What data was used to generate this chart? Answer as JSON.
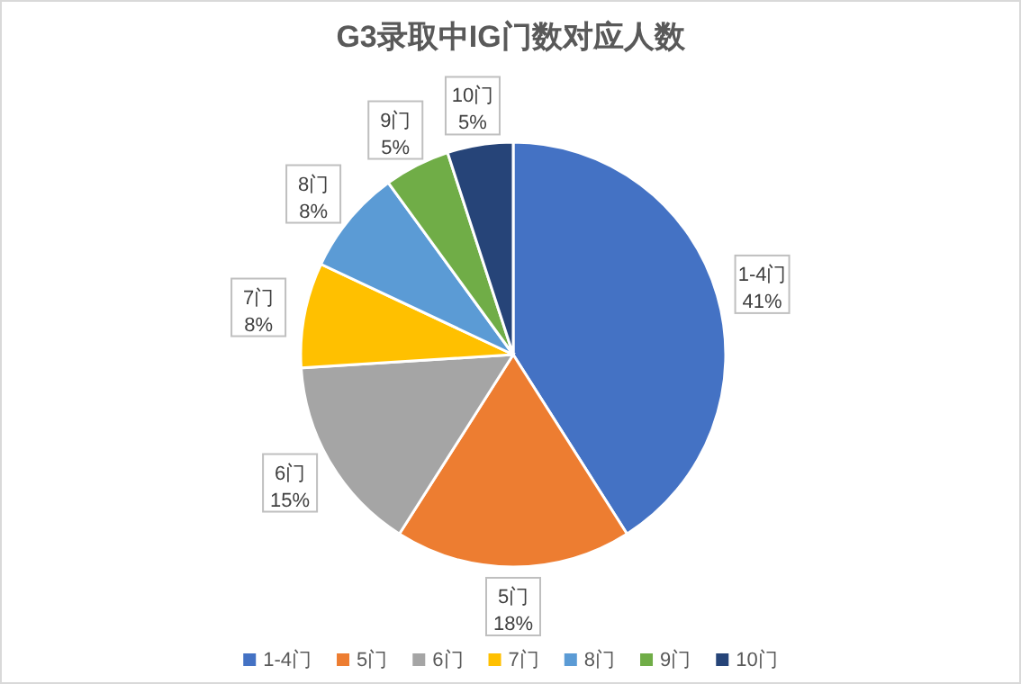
{
  "chart_data": {
    "type": "pie",
    "title": "G3录取中IG门数对应人数",
    "categories": [
      "1-4门",
      "5门",
      "6门",
      "7门",
      "8门",
      "9门",
      "10门"
    ],
    "values": [
      41,
      18,
      15,
      8,
      8,
      5,
      5
    ],
    "colors": [
      "#4472c4",
      "#ed7d31",
      "#a5a5a5",
      "#ffc000",
      "#5b9bd5",
      "#70ad47",
      "#264478"
    ],
    "value_labels": [
      "41%",
      "18%",
      "15%",
      "8%",
      "8%",
      "5%",
      "5%"
    ],
    "legend": "bottom"
  }
}
